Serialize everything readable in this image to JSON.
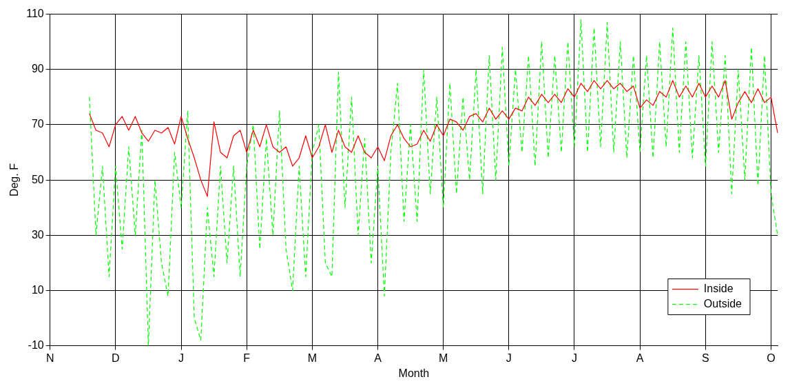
{
  "chart_data": {
    "type": "line",
    "xlabel": "Month",
    "ylabel": "Deg. F",
    "categories": [
      "N",
      null,
      null,
      null,
      null,
      null,
      null,
      null,
      null,
      null,
      "D",
      null,
      null,
      null,
      null,
      null,
      null,
      null,
      null,
      null,
      "J",
      null,
      null,
      null,
      null,
      null,
      null,
      null,
      null,
      null,
      "F",
      null,
      null,
      null,
      null,
      null,
      null,
      null,
      null,
      null,
      "M",
      null,
      null,
      null,
      null,
      null,
      null,
      null,
      null,
      null,
      "A",
      null,
      null,
      null,
      null,
      null,
      null,
      null,
      null,
      null,
      "M",
      null,
      null,
      null,
      null,
      null,
      null,
      null,
      null,
      null,
      "J",
      null,
      null,
      null,
      null,
      null,
      null,
      null,
      null,
      null,
      "J",
      null,
      null,
      null,
      null,
      null,
      null,
      null,
      null,
      null,
      "A",
      null,
      null,
      null,
      null,
      null,
      null,
      null,
      null,
      null,
      "S",
      null,
      null,
      null,
      null,
      null,
      null,
      null,
      null,
      null,
      "O",
      null
    ],
    "ylim": [
      -10,
      110
    ],
    "yticks": [
      -10,
      10,
      30,
      50,
      70,
      90,
      110
    ],
    "grid": true,
    "legend": "bottom right",
    "marker": "none",
    "series": [
      {
        "name": "Outside",
        "color": "#00ff00",
        "line_style": "dashed",
        "values": [
          null,
          null,
          null,
          null,
          null,
          null,
          80,
          30,
          55,
          15,
          55,
          25,
          62,
          30,
          68,
          -10,
          50,
          20,
          8,
          60,
          40,
          75,
          0,
          -8,
          40,
          15,
          55,
          20,
          55,
          15,
          55,
          70,
          25,
          65,
          30,
          75,
          25,
          10,
          55,
          15,
          60,
          70,
          20,
          15,
          89,
          40,
          80,
          30,
          65,
          20,
          55,
          8,
          60,
          85,
          35,
          70,
          35,
          90,
          45,
          80,
          40,
          85,
          45,
          80,
          50,
          90,
          45,
          95,
          50,
          98,
          55,
          90,
          60,
          95,
          55,
          100,
          58,
          95,
          60,
          100,
          62,
          108,
          60,
          105,
          62,
          107,
          60,
          100,
          58,
          95,
          60,
          95,
          58,
          100,
          62,
          105,
          60,
          100,
          58,
          95,
          55,
          100,
          60,
          95,
          45,
          90,
          50,
          98,
          48,
          95,
          45,
          30
        ]
      },
      {
        "name": "Inside",
        "color": "#ff0000",
        "line_style": "solid",
        "values": [
          null,
          null,
          null,
          null,
          null,
          null,
          74,
          68,
          67,
          62,
          70,
          73,
          68,
          73,
          67,
          64,
          68,
          67,
          69,
          63,
          73,
          65,
          58,
          50,
          44,
          71,
          60,
          58,
          66,
          68,
          60,
          68,
          62,
          70,
          62,
          60,
          62,
          55,
          58,
          66,
          58,
          62,
          70,
          60,
          68,
          62,
          60,
          66,
          60,
          58,
          62,
          57,
          66,
          70,
          65,
          62,
          63,
          68,
          64,
          70,
          66,
          72,
          71,
          68,
          73,
          74,
          71,
          76,
          72,
          75,
          72,
          76,
          75,
          80,
          77,
          81,
          78,
          81,
          78,
          83,
          80,
          85,
          82,
          86,
          83,
          86,
          83,
          85,
          82,
          84,
          76,
          79,
          77,
          82,
          80,
          86,
          80,
          84,
          80,
          85,
          80,
          84,
          80,
          86,
          72,
          78,
          82,
          78,
          83,
          78,
          80,
          67
        ]
      }
    ]
  }
}
